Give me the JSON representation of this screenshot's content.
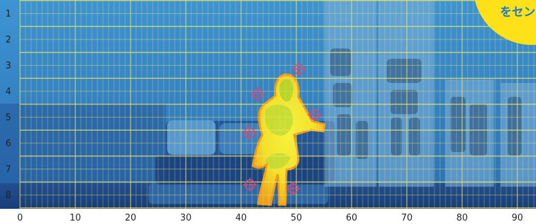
{
  "callout": {
    "text": "をセン"
  },
  "row_labels": [
    "1",
    "2",
    "3",
    "4",
    "5",
    "6",
    "7",
    "8"
  ],
  "column_labels": [
    "0",
    "10",
    "20",
    "30",
    "40",
    "50",
    "60",
    "70",
    "80",
    "90"
  ],
  "markers": [
    {
      "name": "marker-1",
      "col": 50.5,
      "row": 3.15
    },
    {
      "name": "marker-2",
      "col": 43.0,
      "row": 4.1
    },
    {
      "name": "marker-3",
      "col": 53.3,
      "row": 4.9
    },
    {
      "name": "marker-4",
      "col": 41.5,
      "row": 5.6
    },
    {
      "name": "marker-5",
      "col": 41.6,
      "row": 7.6
    },
    {
      "name": "marker-6",
      "col": 49.4,
      "row": 7.75
    }
  ],
  "colors": {
    "wall": "#3b8fcf",
    "floor": "#1e4e8e",
    "grid_line": "#f0e35a",
    "marker": "#d8487a",
    "hot_core": "#f6f03a",
    "hot_edge": "#f29a1a",
    "callout_bg": "#ffe119",
    "callout_text": "#1d78c6"
  }
}
